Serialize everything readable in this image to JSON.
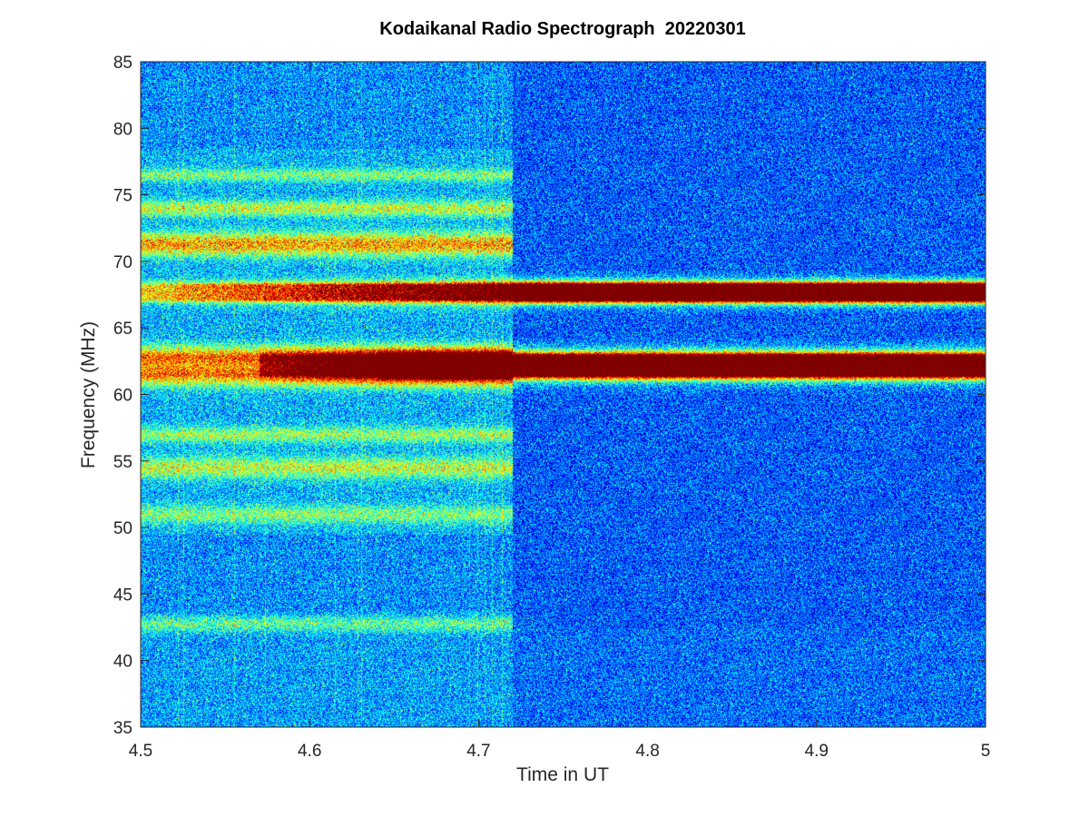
{
  "chart_data": {
    "type": "heatmap",
    "title": "Kodaikanal Radio Spectrograph  20220301",
    "xlabel": "Time in UT",
    "ylabel": "Frequency (MHz)",
    "xlim": [
      4.5,
      5
    ],
    "ylim": [
      35,
      85
    ],
    "x_ticks": [
      "4.5",
      "4.6",
      "4.7",
      "4.8",
      "4.9",
      "5"
    ],
    "y_ticks": [
      "35",
      "40",
      "45",
      "50",
      "55",
      "60",
      "65",
      "70",
      "75",
      "80",
      "85"
    ],
    "colormap": "jet",
    "background_color": "#0a1fb4",
    "noise_change_time": 4.72,
    "features": [
      {
        "kind": "emission-lane",
        "freq_center": 67.7,
        "freq_halfwidth": 0.55,
        "t_onset": 4.5,
        "t_saturate": 4.72,
        "intensity_start": 0.35,
        "intensity_end": 1.0
      },
      {
        "kind": "emission-lane",
        "freq_center": 62.2,
        "freq_halfwidth": 0.7,
        "t_onset": 4.57,
        "t_saturate": 4.64,
        "intensity_start": 0.5,
        "intensity_end": 1.0
      }
    ],
    "interference_bands_before_4_72": [
      {
        "freq": 71.3,
        "width": 0.9,
        "intensity": 0.45
      },
      {
        "freq": 74.0,
        "width": 0.6,
        "intensity": 0.3
      },
      {
        "freq": 76.5,
        "width": 0.5,
        "intensity": 0.22
      },
      {
        "freq": 54.5,
        "width": 0.8,
        "intensity": 0.3
      },
      {
        "freq": 57.0,
        "width": 0.6,
        "intensity": 0.25
      },
      {
        "freq": 51.0,
        "width": 0.7,
        "intensity": 0.22
      },
      {
        "freq": 63.0,
        "width": 0.8,
        "intensity": 0.3
      },
      {
        "freq": 61.3,
        "width": 0.8,
        "intensity": 0.3
      },
      {
        "freq": 42.8,
        "width": 0.6,
        "intensity": 0.22
      }
    ]
  }
}
